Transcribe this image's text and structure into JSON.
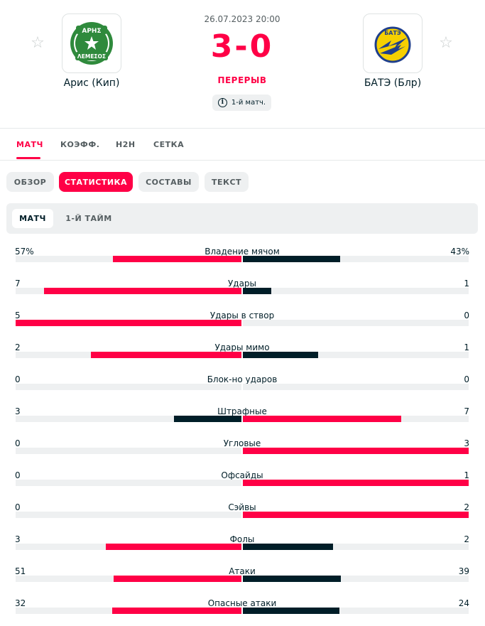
{
  "match": {
    "date": "26.07.2023 20:00",
    "score": "3-0",
    "status": "ПЕРЕРЫВ",
    "info": "1-й матч."
  },
  "home": {
    "name": "Арис (Кип)",
    "logo_text_top": "ΑΡΗΣ",
    "logo_text_bottom": "ΛΕΜΕΣΟΣ"
  },
  "away": {
    "name": "БАТЭ (Блр)",
    "logo_text": "БАТЭ"
  },
  "main_tabs": [
    "МАТЧ",
    "КОЭФФ.",
    "H2H",
    "СЕТКА"
  ],
  "sub_tabs": [
    "ОБЗОР",
    "СТАТИСТИКА",
    "СОСТАВЫ",
    "ТЕКСТ"
  ],
  "period_tabs": [
    "МАТЧ",
    "1-Й ТАЙМ"
  ],
  "colors": {
    "accent": "#ff0046",
    "dark": "#001e28",
    "track": "#eef0f1"
  },
  "stats": [
    {
      "label": "Владение мячом",
      "home": "57%",
      "away": "43%",
      "h": 57,
      "a": 43,
      "max": 100
    },
    {
      "label": "Удары",
      "home": "7",
      "away": "1",
      "h": 7,
      "a": 1,
      "max": 8
    },
    {
      "label": "Удары в створ",
      "home": "5",
      "away": "0",
      "h": 5,
      "a": 0,
      "max": 5
    },
    {
      "label": "Удары мимо",
      "home": "2",
      "away": "1",
      "h": 2,
      "a": 1,
      "max": 3
    },
    {
      "label": "Блок-но ударов",
      "home": "0",
      "away": "0",
      "h": 0,
      "a": 0,
      "max": 0
    },
    {
      "label": "Штрафные",
      "home": "3",
      "away": "7",
      "h": 3,
      "a": 7,
      "max": 10
    },
    {
      "label": "Угловые",
      "home": "0",
      "away": "3",
      "h": 0,
      "a": 3,
      "max": 3
    },
    {
      "label": "Офсайды",
      "home": "0",
      "away": "1",
      "h": 0,
      "a": 1,
      "max": 1
    },
    {
      "label": "Сэйвы",
      "home": "0",
      "away": "2",
      "h": 0,
      "a": 2,
      "max": 2
    },
    {
      "label": "Фолы",
      "home": "3",
      "away": "2",
      "h": 3,
      "a": 2,
      "max": 5
    },
    {
      "label": "Атаки",
      "home": "51",
      "away": "39",
      "h": 51,
      "a": 39,
      "max": 90
    },
    {
      "label": "Опасные атаки",
      "home": "32",
      "away": "24",
      "h": 32,
      "a": 24,
      "max": 56
    }
  ]
}
